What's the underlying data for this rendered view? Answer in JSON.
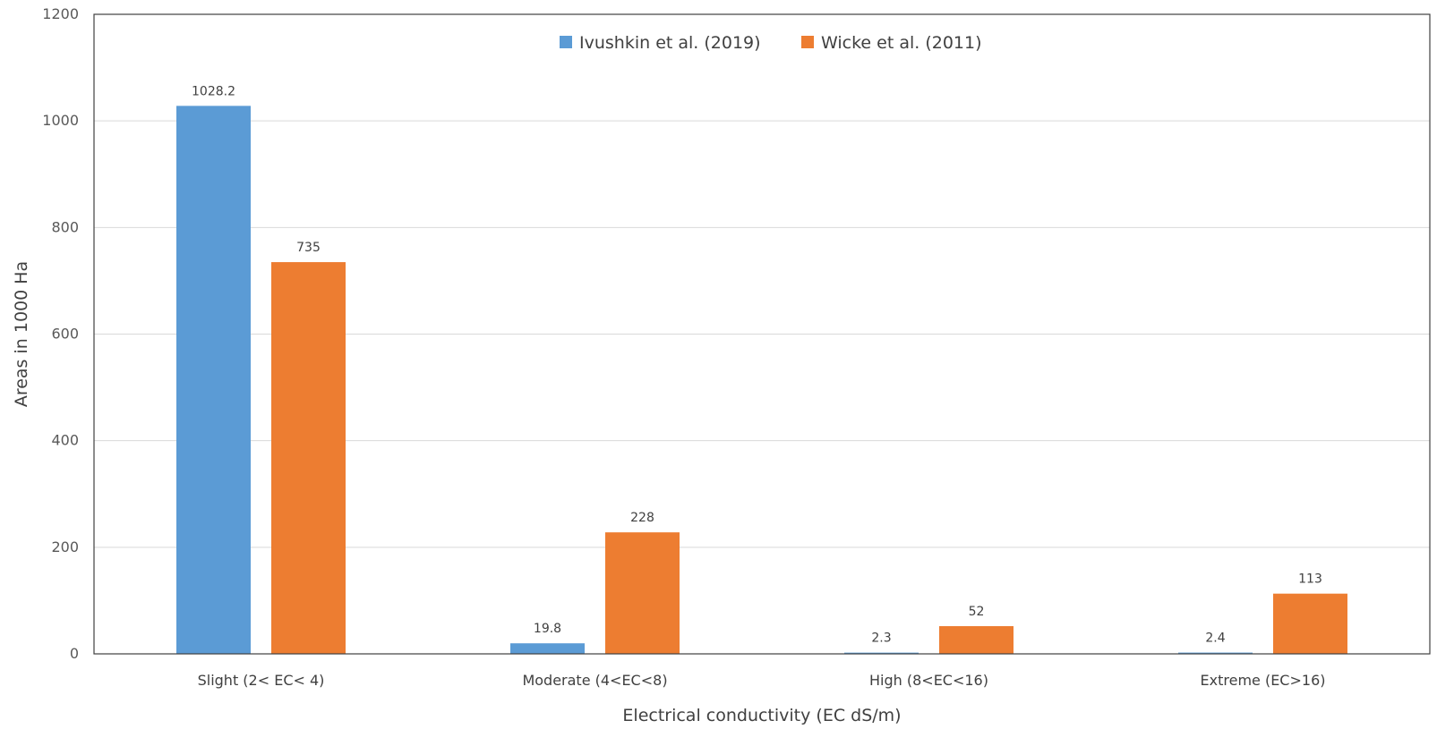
{
  "chart_data": {
    "type": "bar",
    "categories": [
      "Slight (2< EC< 4)",
      "Moderate (4<EC<8)",
      "High (8<EC<16)",
      "Extreme (EC>16)"
    ],
    "series": [
      {
        "name": "Ivushkin et al. (2019)",
        "values": [
          1028.2,
          19.8,
          2.3,
          2.4
        ],
        "labels": [
          "1028.2",
          "19.8",
          "2.3",
          "2.4"
        ],
        "color": "#5b9bd5"
      },
      {
        "name": "Wicke et al. (2011)",
        "values": [
          735,
          228,
          52,
          113
        ],
        "labels": [
          "735",
          "228",
          "52",
          "113"
        ],
        "color": "#ed7d31"
      }
    ],
    "xlabel": "Electrical conductivity (EC dS/m)",
    "ylabel": "Areas in 1000 Ha",
    "ylim": [
      0,
      1200
    ],
    "yticks": [
      0,
      200,
      400,
      600,
      800,
      1000,
      1200
    ],
    "grid": true,
    "legend_position": "top-center"
  }
}
